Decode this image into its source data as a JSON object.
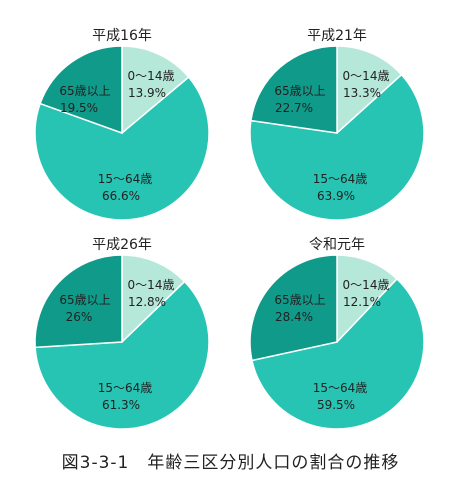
{
  "colors": {
    "age_0_14": "#b6e8d9",
    "age_15_64": "#27c4b4",
    "age_65_plus": "#0f9a8a",
    "slice_border": "#ffffff",
    "text": "#222222"
  },
  "caption": "図3-3-1　年齢三区分別人口の割合の推移",
  "chart_data": [
    {
      "type": "pie",
      "title": "平成16年",
      "slices": [
        {
          "label": "0～14歳",
          "value": 13.9,
          "display": "13.9%"
        },
        {
          "label": "15～64歳",
          "value": 66.6,
          "display": "66.6%"
        },
        {
          "label": "65歳以上",
          "value": 19.5,
          "display": "19.5%"
        }
      ]
    },
    {
      "type": "pie",
      "title": "平成21年",
      "slices": [
        {
          "label": "0～14歳",
          "value": 13.3,
          "display": "13.3%"
        },
        {
          "label": "15～64歳",
          "value": 63.9,
          "display": "63.9%"
        },
        {
          "label": "65歳以上",
          "value": 22.7,
          "display": "22.7%"
        }
      ]
    },
    {
      "type": "pie",
      "title": "平成26年",
      "slices": [
        {
          "label": "0～14歳",
          "value": 12.8,
          "display": "12.8%"
        },
        {
          "label": "15～64歳",
          "value": 61.3,
          "display": "61.3%"
        },
        {
          "label": "65歳以上",
          "value": 26,
          "display": "26%"
        }
      ]
    },
    {
      "type": "pie",
      "title": "令和元年",
      "slices": [
        {
          "label": "0～14歳",
          "value": 12.1,
          "display": "12.1%"
        },
        {
          "label": "15～64歳",
          "value": 59.5,
          "display": "59.5%"
        },
        {
          "label": "65歳以上",
          "value": 28.4,
          "display": "28.4%"
        }
      ]
    }
  ]
}
